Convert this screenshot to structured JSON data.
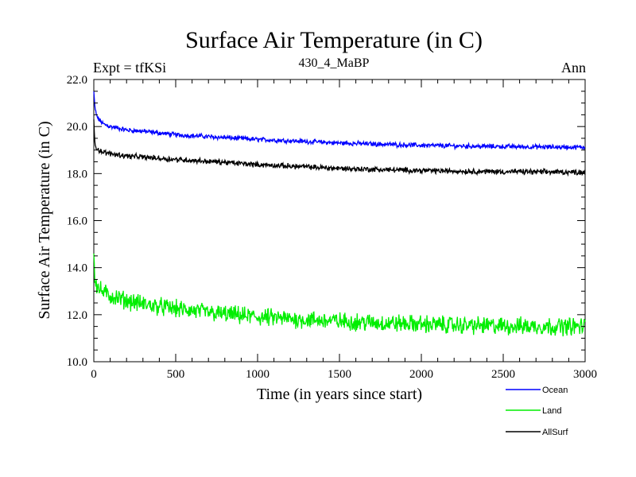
{
  "chart_data": {
    "type": "line",
    "title": "Surface Air Temperature (in C)",
    "subtitle_left": "Expt = tfKSi",
    "subtitle_center": "430_4_MaBP",
    "subtitle_right": "Ann",
    "xlabel": "Time (in years since start)",
    "ylabel": "Surface Air Temperature (in C)",
    "xlim": [
      0,
      3000
    ],
    "ylim": [
      10.0,
      22.0
    ],
    "xticks": [
      0,
      500,
      1000,
      1500,
      2000,
      2500,
      3000
    ],
    "yticks": [
      "10.0",
      "12.0",
      "14.0",
      "16.0",
      "18.0",
      "20.0",
      "22.0"
    ],
    "series": [
      {
        "name": "Ocean",
        "color": "#0000ff",
        "noise": 0.08,
        "x": [
          0,
          5,
          15,
          30,
          60,
          100,
          200,
          300,
          500,
          750,
          1000,
          1250,
          1500,
          1750,
          2000,
          2250,
          2500,
          2750,
          3000
        ],
        "y": [
          21.5,
          20.9,
          20.5,
          20.3,
          20.1,
          20.0,
          19.85,
          19.8,
          19.65,
          19.55,
          19.45,
          19.38,
          19.3,
          19.25,
          19.2,
          19.17,
          19.15,
          19.13,
          19.12
        ]
      },
      {
        "name": "Land",
        "color": "#00ee00",
        "noise": 0.3,
        "x": [
          0,
          5,
          15,
          30,
          60,
          100,
          200,
          300,
          500,
          750,
          1000,
          1250,
          1500,
          1750,
          2000,
          2250,
          2500,
          2750,
          3000
        ],
        "y": [
          14.6,
          13.7,
          13.3,
          13.1,
          12.95,
          12.8,
          12.6,
          12.45,
          12.25,
          12.05,
          11.9,
          11.8,
          11.72,
          11.65,
          11.6,
          11.55,
          11.52,
          11.5,
          11.5
        ]
      },
      {
        "name": "AllSurf",
        "color": "#000000",
        "noise": 0.09,
        "x": [
          0,
          5,
          15,
          30,
          60,
          100,
          200,
          300,
          500,
          750,
          1000,
          1250,
          1500,
          1750,
          2000,
          2250,
          2500,
          2750,
          3000
        ],
        "y": [
          20.3,
          19.4,
          19.1,
          19.0,
          18.9,
          18.85,
          18.75,
          18.7,
          18.6,
          18.5,
          18.38,
          18.3,
          18.22,
          18.17,
          18.13,
          18.1,
          18.08,
          18.07,
          18.06
        ]
      }
    ],
    "legend": [
      "Ocean",
      "Land",
      "AllSurf"
    ]
  }
}
